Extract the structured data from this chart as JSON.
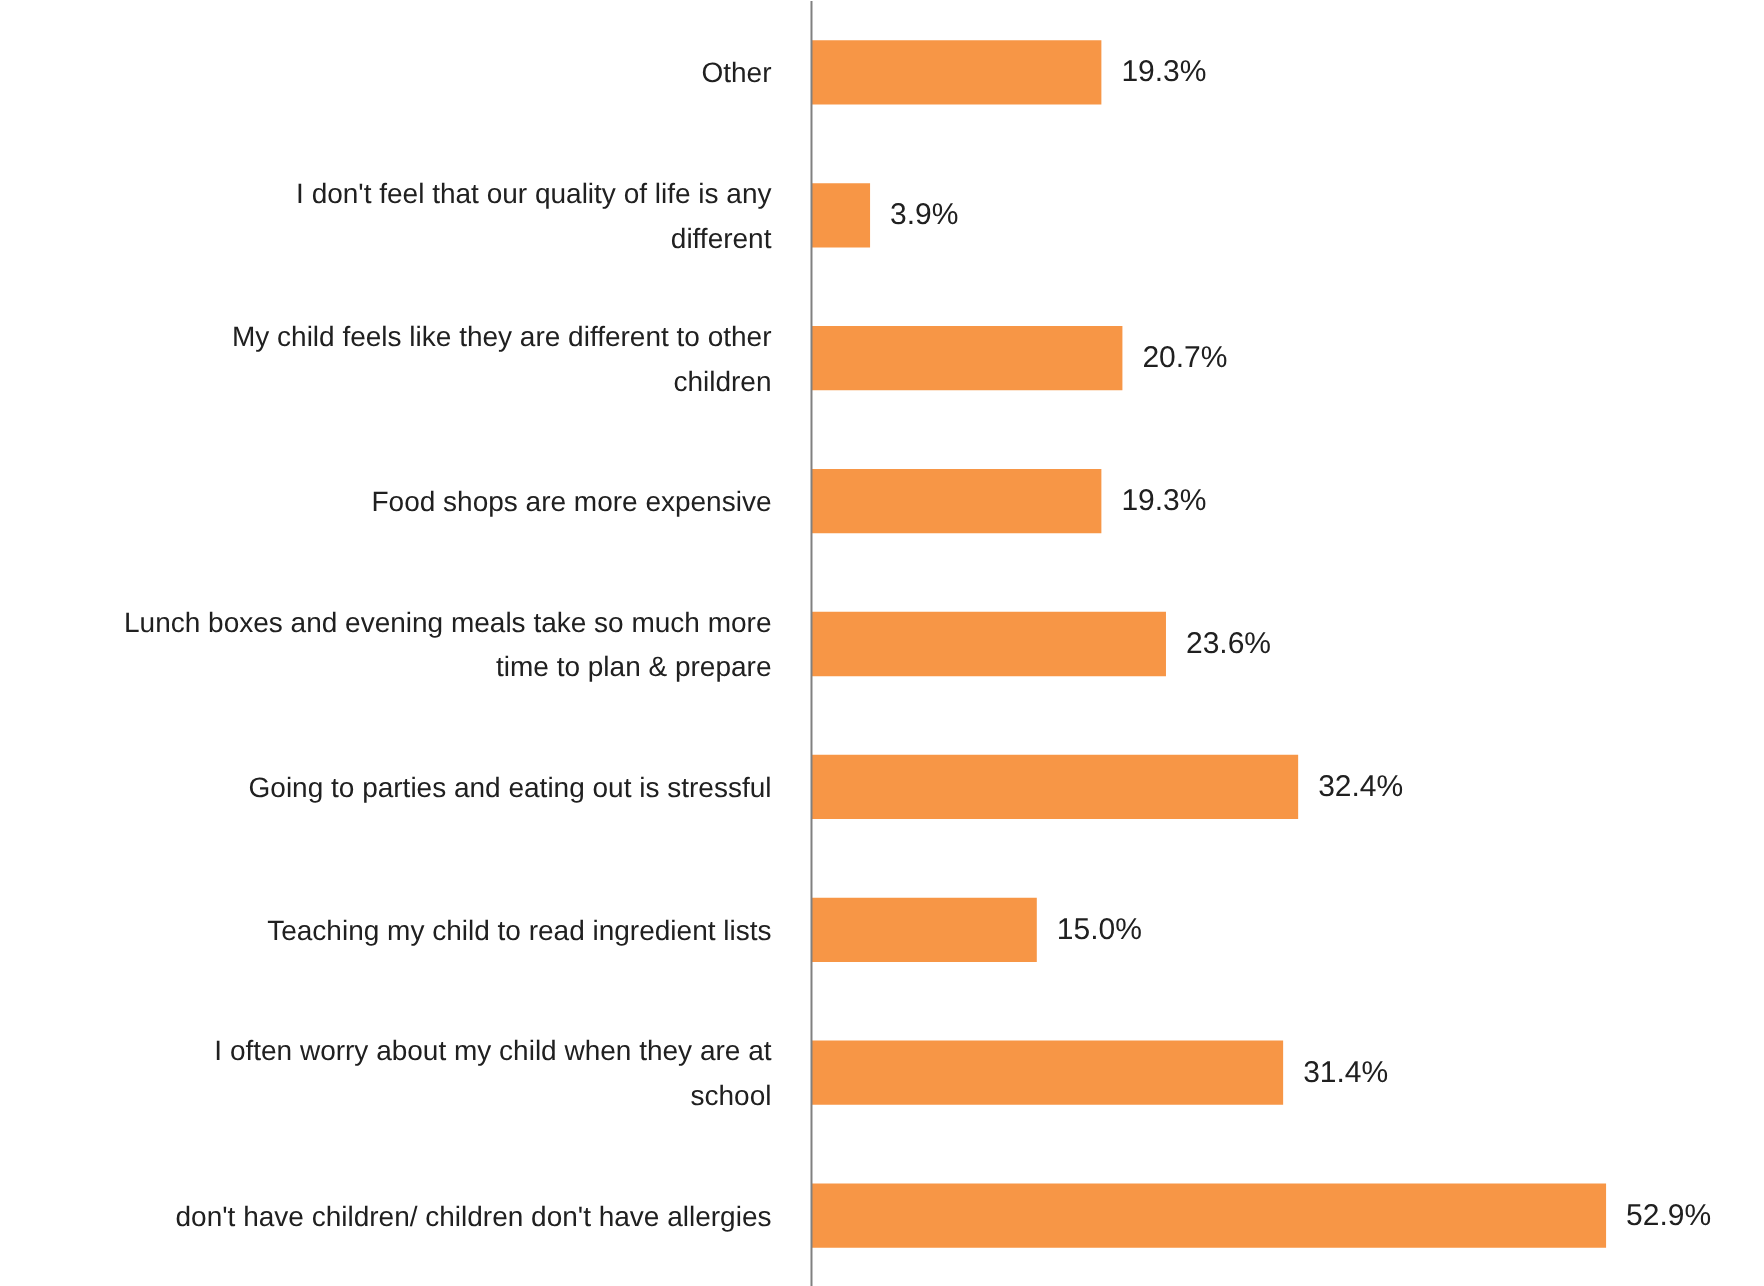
{
  "chart_data": {
    "type": "bar",
    "orientation": "horizontal",
    "data_labels": true,
    "categories": [
      "Other",
      "I don't feel that our quality of life is any different",
      "My child feels like they are different to other children",
      "Food shops are more expensive",
      "Lunch boxes and evening meals take so much more time to plan & prepare",
      "Going to parties and eating out is stressful",
      "Teaching my child to read ingredient lists",
      "I often worry about my child when they are at school",
      "don't have children/ children don't have allergies"
    ],
    "values": [
      19.3,
      3.9,
      20.7,
      19.3,
      23.6,
      32.4,
      15.0,
      31.4,
      52.9
    ],
    "value_labels": [
      "19.3%",
      "3.9%",
      "20.7%",
      "19.3%",
      "23.6%",
      "32.4%",
      "15.0%",
      "31.4%",
      "52.9%"
    ],
    "color": "#f79646"
  }
}
